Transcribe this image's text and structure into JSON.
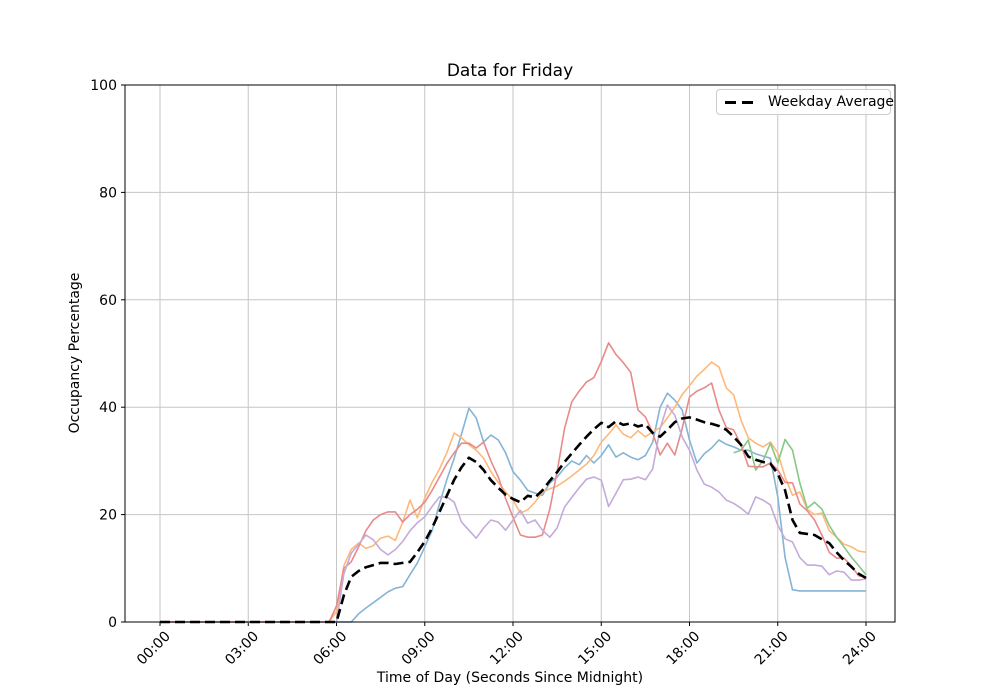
{
  "figure": {
    "title": "Data for Friday",
    "xlabel": "Time of Day (Seconds Since Midnight)",
    "ylabel": "Occupancy Percentage",
    "background_color": "#ffffff"
  },
  "legend": {
    "position": "upper right",
    "entries": [
      {
        "label": "Weekday Average",
        "line_color": "#000000",
        "line_style": "dashed"
      }
    ]
  },
  "axes": {
    "x_tick_labels": [
      "00:00",
      "03:00",
      "06:00",
      "09:00",
      "12:00",
      "15:00",
      "18:00",
      "21:00",
      "24:00"
    ],
    "x_tick_hours": [
      0,
      3,
      6,
      9,
      12,
      15,
      18,
      21,
      24
    ],
    "y_tick_labels": [
      "0",
      "20",
      "40",
      "60",
      "80",
      "100"
    ],
    "y_tick_values": [
      0,
      20,
      40,
      60,
      80,
      100
    ],
    "ylim": [
      0,
      100
    ],
    "grid": true,
    "grid_color": "#c6c6c6",
    "spine_color": "#000000"
  },
  "chart_data": {
    "type": "line",
    "title": "Data for Friday",
    "xlabel": "Time of Day (Seconds Since Midnight)",
    "ylabel": "Occupancy Percentage",
    "x_unit": "hours",
    "x_step_hours": 0.25,
    "xlim_hours": [
      0,
      24
    ],
    "ylim": [
      0,
      100
    ],
    "grid": true,
    "legend_position": "upper right",
    "series": [
      {
        "name": "friday-week-1-blue",
        "color": "#84b4d6",
        "width": 1.6,
        "dashed": false,
        "x_start_hour": 0,
        "values": [
          0,
          0,
          0,
          0,
          0,
          0,
          0,
          0,
          0,
          0,
          0,
          0,
          0,
          0,
          0,
          0,
          0,
          0,
          0,
          0,
          0,
          0,
          0,
          0,
          0,
          0,
          0,
          1.5,
          2.6,
          3.6,
          4.6,
          5.6,
          6.3,
          6.6,
          8.8,
          11,
          14,
          17,
          22,
          26.5,
          30.5,
          35,
          39.8,
          38,
          33.5,
          34.8,
          33.9,
          31.5,
          28,
          26.4,
          24.5,
          24,
          23.6,
          25.9,
          27,
          28.7,
          30,
          29.3,
          31,
          29.6,
          31,
          33,
          30.7,
          31.5,
          30.7,
          30.2,
          31,
          33.5,
          40,
          42.6,
          41.3,
          39.5,
          33.9,
          29.6,
          31.3,
          32.4,
          33.9,
          33.1,
          32.6,
          32,
          32,
          31.3,
          30.9,
          30.5,
          23.3,
          12,
          6,
          5.8,
          5.8,
          5.8,
          5.8,
          5.8,
          5.8,
          5.8,
          5.8,
          5.8,
          5.8
        ]
      },
      {
        "name": "friday-week-2-orange",
        "color": "#ffb87a",
        "width": 1.6,
        "dashed": false,
        "x_start_hour": 0,
        "values": [
          0,
          0,
          0,
          0,
          0,
          0,
          0,
          0,
          0,
          0,
          0,
          0,
          0,
          0,
          0,
          0,
          0,
          0,
          0,
          0,
          0,
          0,
          0,
          0,
          2,
          10.5,
          13.5,
          14.7,
          13.7,
          14.2,
          15.6,
          16,
          15.2,
          18.6,
          22.7,
          19.4,
          23.1,
          26,
          28.5,
          31.5,
          35.2,
          34.3,
          33,
          32,
          30.5,
          28,
          26,
          24.2,
          22.7,
          20.3,
          20.9,
          22.3,
          24.2,
          24.8,
          25.3,
          26.2,
          27.2,
          28.3,
          29.4,
          31,
          33.5,
          35,
          36.7,
          35,
          34.3,
          35.6,
          34.5,
          35.4,
          36.2,
          38,
          40,
          42.3,
          44,
          45.8,
          47,
          48.4,
          47.5,
          43.6,
          42.3,
          37.6,
          34.3,
          33.3,
          32.6,
          33.5,
          31.5,
          27,
          23.6,
          24.2,
          21,
          20,
          20.3,
          17,
          15.8,
          14.5,
          14,
          13.2,
          13
        ]
      },
      {
        "name": "friday-week-3-green",
        "color": "#86c886",
        "width": 1.6,
        "dashed": false,
        "x_start_hour": 19.5,
        "values": [
          31.5,
          32,
          33.9,
          28.3,
          30,
          33.3,
          29.6,
          34,
          32,
          25.9,
          21.2,
          22.3,
          21,
          18,
          15.8,
          14,
          12.1,
          10.5,
          8.8
        ]
      },
      {
        "name": "friday-week-4-red",
        "color": "#e88a8a",
        "width": 1.6,
        "dashed": false,
        "x_start_hour": 0,
        "values": [
          0,
          0,
          0,
          0,
          0,
          0,
          0,
          0,
          0,
          0,
          0,
          0,
          0,
          0,
          0,
          0,
          0,
          0,
          0,
          0,
          0,
          0,
          0,
          0,
          3,
          10,
          11.2,
          14,
          17,
          19,
          20,
          20.5,
          20.5,
          18.6,
          20,
          21,
          22.3,
          24.5,
          27,
          29.5,
          31.5,
          33.3,
          33.3,
          32.4,
          33.5,
          30,
          27,
          23,
          19.5,
          16.2,
          15.8,
          15.8,
          16.2,
          21,
          28,
          36,
          41,
          43,
          44.7,
          45.5,
          48.5,
          52,
          49.8,
          48.3,
          46.5,
          39.5,
          38.2,
          35.2,
          31.1,
          33.3,
          31.1,
          36,
          41.9,
          43,
          43.6,
          44.5,
          39.5,
          36.2,
          35.8,
          33,
          29,
          28.9,
          28.9,
          29.6,
          28.3,
          26,
          25.9,
          22,
          20.7,
          19,
          16.2,
          13,
          11.9,
          11.9,
          10.5,
          8.6,
          8.4
        ]
      },
      {
        "name": "friday-week-5-purple",
        "color": "#c4abda",
        "width": 1.6,
        "dashed": false,
        "x_start_hour": 0,
        "values": [
          0,
          0,
          0,
          0,
          0,
          0,
          0,
          0,
          0,
          0,
          0,
          0,
          0,
          0,
          0,
          0,
          0,
          0,
          0,
          0,
          0,
          0,
          0,
          0,
          0,
          9,
          12.8,
          14.5,
          16.2,
          15.3,
          13.5,
          12.5,
          13.5,
          15,
          17,
          18.5,
          19.6,
          21.5,
          23.3,
          23.3,
          22.3,
          18.6,
          17.1,
          15.6,
          17.5,
          19,
          18.6,
          17.1,
          19,
          20.8,
          18.4,
          19,
          17.1,
          15.8,
          17.5,
          21.4,
          23.2,
          25,
          26.6,
          27,
          26.4,
          21.5,
          24,
          26.5,
          26.6,
          27,
          26.5,
          28.5,
          36,
          40.4,
          38.5,
          34.5,
          32,
          28.3,
          25.7,
          25.1,
          24.2,
          22.7,
          22.1,
          21.2,
          20.1,
          23.3,
          22.7,
          21.8,
          18,
          15.5,
          14.9,
          12,
          10.6,
          10.6,
          10.4,
          8.8,
          9.5,
          9.3,
          7.8,
          7.8,
          8
        ]
      },
      {
        "name": "Weekday Average",
        "color": "#000000",
        "width": 2.6,
        "dashed": true,
        "x_start_hour": 0,
        "values": [
          0,
          0,
          0,
          0,
          0,
          0,
          0,
          0,
          0,
          0,
          0,
          0,
          0,
          0,
          0,
          0,
          0,
          0,
          0,
          0,
          0,
          0,
          0,
          0,
          0,
          5,
          8.4,
          9.5,
          10.2,
          10.6,
          11,
          11,
          10.8,
          11,
          11.2,
          13,
          15,
          17.5,
          20.5,
          23.5,
          26.5,
          28.8,
          30.6,
          29.8,
          28.3,
          26.4,
          25,
          23.7,
          22.9,
          22.3,
          23.5,
          23.2,
          24.5,
          26.3,
          27.9,
          29.8,
          31.4,
          33,
          34.5,
          35.9,
          37.1,
          36.3,
          37.4,
          36.7,
          37,
          36.4,
          36.8,
          35.2,
          34.5,
          35.8,
          37.2,
          37.9,
          38.1,
          37.7,
          37.2,
          36.9,
          36.5,
          35.8,
          34.5,
          33,
          30.8,
          30.2,
          29.8,
          29.5,
          27.6,
          24.5,
          19,
          16.6,
          16.4,
          16.2,
          15.4,
          14.7,
          13,
          11.5,
          10.3,
          9,
          8.2
        ]
      }
    ]
  }
}
